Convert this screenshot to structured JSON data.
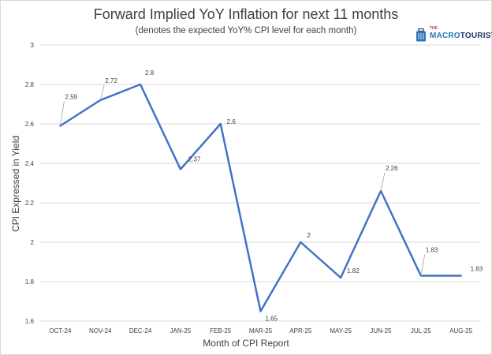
{
  "title": "Forward Implied YoY Inflation for next 11 months",
  "subtitle": "(denotes the expected YoY% CPI level for each month)",
  "logo": {
    "the": "THE",
    "macro": "MACRO",
    "tourist": "TOURIST",
    "icon": "suitcase-icon"
  },
  "colors": {
    "line": "#4472c4",
    "grid": "#d9d9d9",
    "text": "#404040"
  },
  "chart_data": {
    "type": "line",
    "title": "Forward Implied YoY Inflation for next 11 months",
    "subtitle": "(denotes the expected YoY% CPI level for each month)",
    "xlabel": "Month of CPI Report",
    "ylabel": "CPI Expressed in Yield",
    "categories": [
      "OCT-24",
      "NOV-24",
      "DEC-24",
      "JAN-25",
      "FEB-25",
      "MAR-25",
      "APR-25",
      "MAY-25",
      "JUN-25",
      "JUL-25",
      "AUG-25"
    ],
    "series": [
      {
        "values": [
          2.59,
          2.72,
          2.8,
          2.37,
          2.6,
          1.65,
          2,
          1.82,
          2.26,
          1.83,
          1.83
        ]
      }
    ],
    "data_labels": [
      "2.59",
      "2.72",
      "2.8",
      "2.37",
      "2.6",
      "1.65",
      "2",
      "1.82",
      "2.26",
      "1.83",
      "1.83"
    ],
    "ylim": [
      1.6,
      3
    ],
    "yticks": [
      1.6,
      1.8,
      2,
      2.2,
      2.4,
      2.6,
      2.8,
      3
    ],
    "ytick_labels": [
      "1.6",
      "1.8",
      "2",
      "2.2",
      "2.4",
      "2.6",
      "2.8",
      "3"
    ],
    "grid": true,
    "legend": "none"
  }
}
